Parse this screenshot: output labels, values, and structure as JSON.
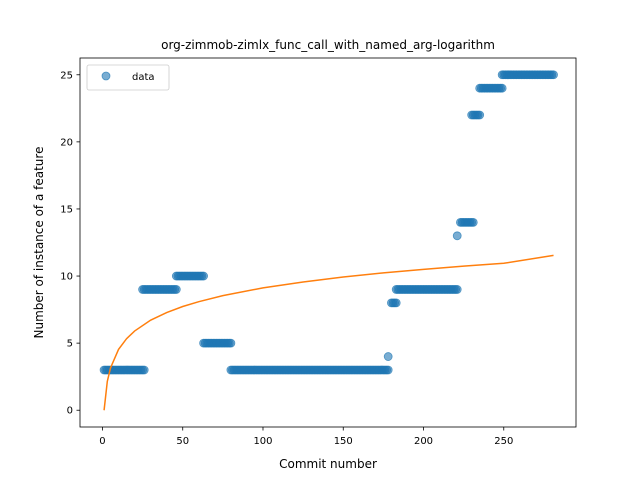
{
  "chart_data": {
    "type": "scatter",
    "title": "org-zimmob-zimlx_func_call_with_named_arg-logarithm",
    "xlabel": "Commit number",
    "ylabel": "Number of instance of a feature",
    "xlim": [
      -14,
      295
    ],
    "ylim": [
      -1.25,
      26.25
    ],
    "xticks": [
      0,
      50,
      100,
      150,
      200,
      250
    ],
    "yticks": [
      0,
      5,
      10,
      15,
      20,
      25
    ],
    "grid": false,
    "legend": {
      "position": "upper-left",
      "entries": [
        "data"
      ]
    },
    "series": [
      {
        "name": "data",
        "kind": "points",
        "color": "#1f77b4",
        "segments": [
          {
            "x_start": 1,
            "x_end": 26,
            "y": 3
          },
          {
            "x_start": 25,
            "x_end": 46,
            "y": 9
          },
          {
            "x_start": 46,
            "x_end": 63,
            "y": 10
          },
          {
            "x_start": 63,
            "x_end": 80,
            "y": 5
          },
          {
            "x_start": 80,
            "x_end": 178,
            "y": 3
          },
          {
            "x_start": 180,
            "x_end": 183,
            "y": 8
          },
          {
            "x_start": 183,
            "x_end": 221,
            "y": 9
          },
          {
            "x_start": 223,
            "x_end": 231,
            "y": 14
          },
          {
            "x_start": 230,
            "x_end": 235,
            "y": 22
          },
          {
            "x_start": 235,
            "x_end": 249,
            "y": 24
          },
          {
            "x_start": 249,
            "x_end": 281,
            "y": 25
          }
        ],
        "points": [
          {
            "x": 178,
            "y": 4
          },
          {
            "x": 221,
            "y": 13
          }
        ]
      },
      {
        "kind": "fit",
        "color": "#ff7f0e",
        "model": "logarithmic",
        "x": [
          1,
          3,
          5,
          10,
          15,
          20,
          30,
          40,
          50,
          60,
          75,
          100,
          125,
          150,
          175,
          200,
          225,
          250,
          281
        ],
        "y": [
          0.0,
          2.14,
          3.15,
          4.53,
          5.33,
          5.9,
          6.71,
          7.28,
          7.73,
          8.09,
          8.54,
          9.12,
          9.56,
          9.93,
          10.24,
          10.5,
          10.74,
          10.95,
          11.54
        ]
      }
    ]
  }
}
